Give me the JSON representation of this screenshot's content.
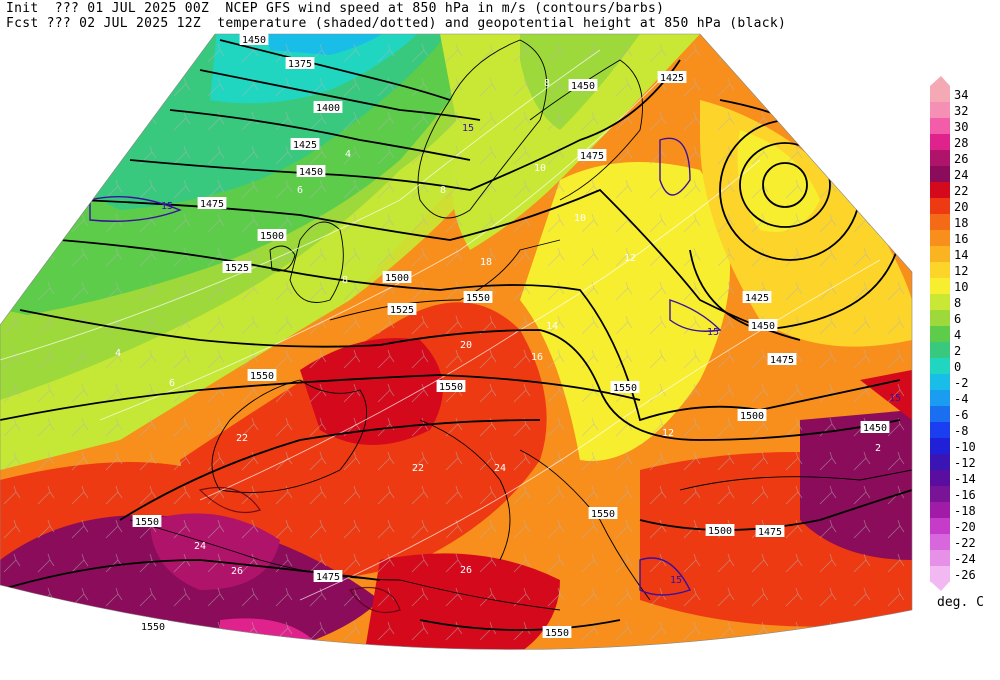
{
  "header": {
    "init_line": "Init  ??? 01 JUL 2025 00Z  NCEP GFS wind speed at 850 hPa in m/s (contours/barbs)",
    "fcst_line": "Fcst ??? 02 JUL 2025 12Z  temperature (shaded/dotted) and geopotential height at 850 hPa (black)"
  },
  "legend": {
    "unit": "deg. C",
    "levels": [
      {
        "label": "34",
        "color": "#f4a9b4"
      },
      {
        "label": "32",
        "color": "#f58fb4"
      },
      {
        "label": "30",
        "color": "#f25ca8"
      },
      {
        "label": "28",
        "color": "#e0238c"
      },
      {
        "label": "26",
        "color": "#b0146a"
      },
      {
        "label": "24",
        "color": "#8a0c5a"
      },
      {
        "label": "22",
        "color": "#d40a1c"
      },
      {
        "label": "20",
        "color": "#ee3a12"
      },
      {
        "label": "18",
        "color": "#f46a16"
      },
      {
        "label": "16",
        "color": "#f88e1c"
      },
      {
        "label": "14",
        "color": "#fab422"
      },
      {
        "label": "12",
        "color": "#fcd42a"
      },
      {
        "label": "10",
        "color": "#f7ee30"
      },
      {
        "label": "8",
        "color": "#c9e835"
      },
      {
        "label": "6",
        "color": "#9ed93b"
      },
      {
        "label": "4",
        "color": "#5ccc4a"
      },
      {
        "label": "2",
        "color": "#38c97e"
      },
      {
        "label": "0",
        "color": "#20d6c0"
      },
      {
        "label": "-2",
        "color": "#18bde8"
      },
      {
        "label": "-4",
        "color": "#1a9df0"
      },
      {
        "label": "-6",
        "color": "#1a6ff0"
      },
      {
        "label": "-8",
        "color": "#1a3ef0"
      },
      {
        "label": "-10",
        "color": "#2020d8"
      },
      {
        "label": "-12",
        "color": "#3a14b4"
      },
      {
        "label": "-14",
        "color": "#5a0ea0"
      },
      {
        "label": "-16",
        "color": "#7a1496"
      },
      {
        "label": "-18",
        "color": "#a01ca8"
      },
      {
        "label": "-20",
        "color": "#c43cc8"
      },
      {
        "label": "-22",
        "color": "#d866dc"
      },
      {
        "label": "-24",
        "color": "#e690e8"
      },
      {
        "label": "-26",
        "color": "#f2b8f2"
      }
    ]
  },
  "height_labels": [
    "1450",
    "1375",
    "1400",
    "1425",
    "1450",
    "1475",
    "1500",
    "1525",
    "1500",
    "1525",
    "1550",
    "1550",
    "1550",
    "1550",
    "1425",
    "1450",
    "1475",
    "1425",
    "1450",
    "1475",
    "1500",
    "1450",
    "1475",
    "1500",
    "1475",
    "1550",
    "1550",
    "1550",
    "1550"
  ],
  "wind_labels": [
    "15",
    "15",
    "15",
    "15",
    "15"
  ],
  "temp_labels": [
    "4",
    "6",
    "8",
    "8",
    "10",
    "10",
    "12",
    "12",
    "14",
    "16",
    "18",
    "20",
    "22",
    "22",
    "24",
    "24",
    "26",
    "26",
    "2",
    "4",
    "6",
    "8"
  ]
}
